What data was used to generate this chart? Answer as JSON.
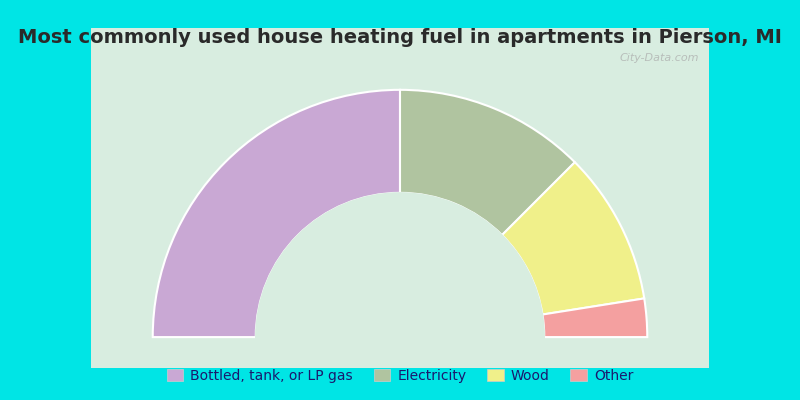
{
  "title": "Most commonly used house heating fuel in apartments in Pierson, MI",
  "segments": [
    {
      "label": "Bottled, tank, or LP gas",
      "value": 50,
      "color": "#c9a8d4"
    },
    {
      "label": "Electricity",
      "value": 25,
      "color": "#b0c4a0"
    },
    {
      "label": "Wood",
      "value": 20,
      "color": "#f0f08a"
    },
    {
      "label": "Other",
      "value": 5,
      "color": "#f4a0a0"
    }
  ],
  "bg_outer": "#00e5e5",
  "bg_inner": "#d8ede0",
  "title_color": "#2a2a2a",
  "title_fontsize": 14,
  "legend_fontsize": 10,
  "watermark": "City-Data.com"
}
